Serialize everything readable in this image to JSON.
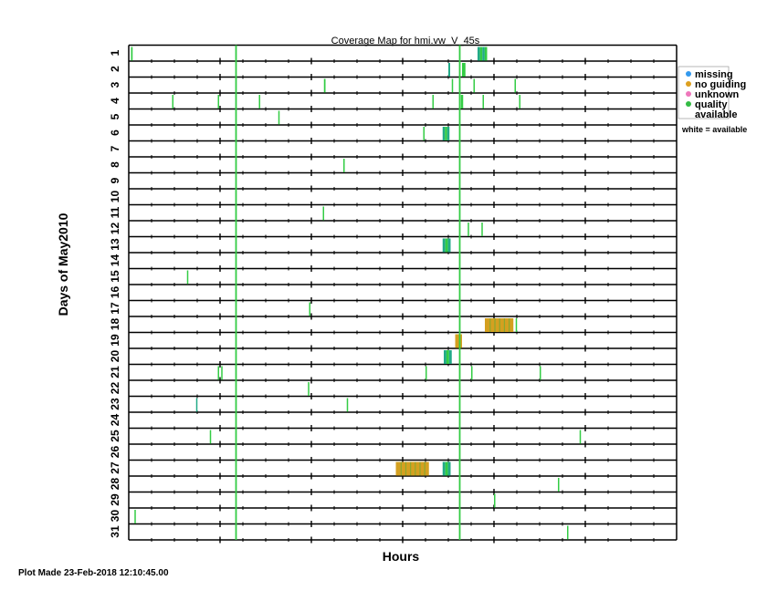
{
  "chart_data": {
    "type": "coverage-map",
    "title": "Coverage Map for hmi.vw_V_45s",
    "xlabel": "Hours",
    "ylabel": "Days of May2010",
    "xlim": [
      0,
      24
    ],
    "days": [
      "1",
      "2",
      "3",
      "4",
      "5",
      "6",
      "7",
      "8",
      "9",
      "10",
      "11",
      "12",
      "13",
      "14",
      "15",
      "16",
      "17",
      "18",
      "19",
      "20",
      "21",
      "22",
      "23",
      "24",
      "25",
      "26",
      "27",
      "28",
      "29",
      "30",
      "31"
    ],
    "legend": [
      {
        "label": "missing",
        "color": "#3399ee"
      },
      {
        "label": "no guiding",
        "color": "#dda020"
      },
      {
        "label": "unknown",
        "color": "#ee77bb"
      },
      {
        "label": "quality",
        "label2": "available",
        "color": "#33bb44"
      }
    ],
    "note": "white = available",
    "colors": {
      "quality": "#33cc44",
      "mixed": "#22aa88",
      "no_guiding": "#d4a020"
    },
    "vertical_lines_hours": [
      4.7,
      14.5
    ],
    "segments": [
      {
        "day": 1,
        "start": 0.1,
        "end": 0.17,
        "kind": "quality"
      },
      {
        "day": 1,
        "start": 15.28,
        "end": 15.7,
        "kind": "mixed"
      },
      {
        "day": 2,
        "start": 14.0,
        "end": 14.08,
        "kind": "mixed"
      },
      {
        "day": 2,
        "start": 14.6,
        "end": 14.75,
        "kind": "quality"
      },
      {
        "day": 3,
        "start": 8.55,
        "end": 8.62,
        "kind": "quality"
      },
      {
        "day": 3,
        "start": 14.15,
        "end": 14.21,
        "kind": "quality"
      },
      {
        "day": 3,
        "start": 15.1,
        "end": 15.16,
        "kind": "quality"
      },
      {
        "day": 3,
        "start": 16.9,
        "end": 16.96,
        "kind": "quality"
      },
      {
        "day": 4,
        "start": 1.9,
        "end": 1.96,
        "kind": "quality"
      },
      {
        "day": 4,
        "start": 3.9,
        "end": 3.96,
        "kind": "quality"
      },
      {
        "day": 4,
        "start": 5.7,
        "end": 5.76,
        "kind": "quality"
      },
      {
        "day": 4,
        "start": 13.3,
        "end": 13.36,
        "kind": "quality"
      },
      {
        "day": 4,
        "start": 14.55,
        "end": 14.65,
        "kind": "quality"
      },
      {
        "day": 4,
        "start": 15.5,
        "end": 15.56,
        "kind": "quality"
      },
      {
        "day": 4,
        "start": 17.1,
        "end": 17.16,
        "kind": "quality"
      },
      {
        "day": 5,
        "start": 6.55,
        "end": 6.61,
        "kind": "quality"
      },
      {
        "day": 6,
        "start": 12.9,
        "end": 12.96,
        "kind": "quality"
      },
      {
        "day": 6,
        "start": 13.75,
        "end": 14.05,
        "kind": "mixed"
      },
      {
        "day": 8,
        "start": 9.4,
        "end": 9.46,
        "kind": "quality"
      },
      {
        "day": 11,
        "start": 8.5,
        "end": 8.56,
        "kind": "quality"
      },
      {
        "day": 12,
        "start": 14.85,
        "end": 14.91,
        "kind": "quality"
      },
      {
        "day": 12,
        "start": 15.45,
        "end": 15.51,
        "kind": "quality"
      },
      {
        "day": 13,
        "start": 13.75,
        "end": 14.1,
        "kind": "mixed"
      },
      {
        "day": 15,
        "start": 2.55,
        "end": 2.61,
        "kind": "quality"
      },
      {
        "day": 17,
        "start": 7.9,
        "end": 7.96,
        "kind": "quality"
      },
      {
        "day": 18,
        "start": 15.6,
        "end": 16.85,
        "kind": "no_guiding"
      },
      {
        "day": 18,
        "start": 16.95,
        "end": 17.01,
        "kind": "quality"
      },
      {
        "day": 19,
        "start": 14.3,
        "end": 14.6,
        "kind": "no_guiding"
      },
      {
        "day": 20,
        "start": 13.8,
        "end": 14.15,
        "kind": "mixed"
      },
      {
        "day": 21,
        "start": 3.9,
        "end": 3.96,
        "kind": "quality"
      },
      {
        "day": 21,
        "start": 4.05,
        "end": 4.11,
        "kind": "quality"
      },
      {
        "day": 21,
        "start": 13.0,
        "end": 13.06,
        "kind": "quality"
      },
      {
        "day": 21,
        "start": 15.0,
        "end": 15.06,
        "kind": "quality"
      },
      {
        "day": 21,
        "start": 18.0,
        "end": 18.06,
        "kind": "quality"
      },
      {
        "day": 22,
        "start": 7.85,
        "end": 7.91,
        "kind": "quality"
      },
      {
        "day": 23,
        "start": 2.95,
        "end": 3.01,
        "kind": "mixed"
      },
      {
        "day": 23,
        "start": 9.55,
        "end": 9.61,
        "kind": "quality"
      },
      {
        "day": 25,
        "start": 3.55,
        "end": 3.61,
        "kind": "quality"
      },
      {
        "day": 25,
        "start": 19.75,
        "end": 19.81,
        "kind": "quality"
      },
      {
        "day": 27,
        "start": 11.7,
        "end": 13.15,
        "kind": "no_guiding"
      },
      {
        "day": 27,
        "start": 13.75,
        "end": 14.1,
        "kind": "mixed"
      },
      {
        "day": 28,
        "start": 18.8,
        "end": 18.86,
        "kind": "quality"
      },
      {
        "day": 29,
        "start": 16.0,
        "end": 16.06,
        "kind": "quality"
      },
      {
        "day": 30,
        "start": 0.25,
        "end": 0.31,
        "kind": "quality"
      },
      {
        "day": 31,
        "start": 19.2,
        "end": 19.26,
        "kind": "quality"
      }
    ]
  },
  "footer": "Plot Made 23-Feb-2018 12:10:45.00"
}
